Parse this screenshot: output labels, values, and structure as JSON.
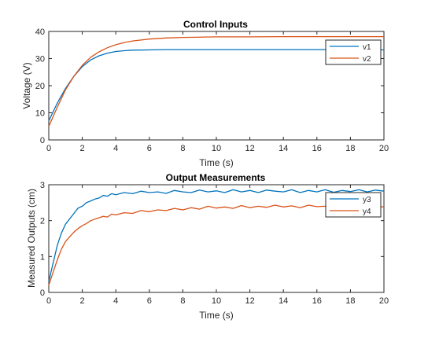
{
  "colors": {
    "blue": "#0072BD",
    "orange": "#D95319"
  },
  "chart_data": [
    {
      "type": "line",
      "title": "Control Inputs",
      "xlabel": "Time (s)",
      "ylabel": "Voltage (V)",
      "xlim": [
        0,
        20
      ],
      "ylim": [
        0,
        40
      ],
      "xticks": [
        "0",
        "2",
        "4",
        "6",
        "8",
        "10",
        "12",
        "14",
        "16",
        "18",
        "20"
      ],
      "yticks": [
        "0",
        "10",
        "20",
        "30",
        "40"
      ],
      "grid": false,
      "legend_position": "top-right",
      "series": [
        {
          "name": "v1",
          "color": "#0072BD",
          "x": [
            0,
            0.5,
            1,
            1.5,
            2,
            2.5,
            3,
            3.5,
            4,
            4.5,
            5,
            6,
            7,
            8,
            10,
            12,
            14,
            16,
            18,
            20
          ],
          "y": [
            7,
            13.5,
            19,
            23.5,
            27,
            29.5,
            31,
            32,
            32.6,
            32.9,
            33.1,
            33.2,
            33.3,
            33.3,
            33.3,
            33.3,
            33.3,
            33.3,
            33.3,
            33.2
          ]
        },
        {
          "name": "v2",
          "color": "#D95319",
          "x": [
            0,
            0.5,
            1,
            1.5,
            2,
            2.5,
            3,
            3.5,
            4,
            4.5,
            5,
            6,
            7,
            8,
            10,
            12,
            14,
            16,
            18,
            20
          ],
          "y": [
            5,
            12,
            18.5,
            23.5,
            27.5,
            30.5,
            32.5,
            34,
            35.1,
            35.9,
            36.5,
            37.2,
            37.6,
            37.8,
            38,
            38,
            38.1,
            38.1,
            38.1,
            38.1
          ]
        }
      ]
    },
    {
      "type": "line",
      "title": "Output Measurements",
      "xlabel": "Time (s)",
      "ylabel": "Measured Outputs (cm)",
      "xlim": [
        0,
        20
      ],
      "ylim": [
        0,
        3
      ],
      "xticks": [
        "0",
        "2",
        "4",
        "6",
        "8",
        "10",
        "12",
        "14",
        "16",
        "18",
        "20"
      ],
      "yticks": [
        "0",
        "1",
        "2",
        "3"
      ],
      "grid": false,
      "legend_position": "top-right",
      "series": [
        {
          "name": "y3",
          "color": "#0072BD",
          "x": [
            0,
            0.25,
            0.5,
            0.75,
            1,
            1.25,
            1.5,
            1.75,
            2,
            2.25,
            2.5,
            2.75,
            3,
            3.25,
            3.5,
            3.75,
            4,
            4.5,
            5,
            5.5,
            6,
            6.5,
            7,
            7.5,
            8,
            8.5,
            9,
            9.5,
            10,
            10.5,
            11,
            11.5,
            12,
            12.5,
            13,
            13.5,
            14,
            14.5,
            15,
            15.5,
            16,
            16.5,
            17,
            17.5,
            18,
            18.5,
            19,
            19.5,
            20
          ],
          "y": [
            0.3,
            0.8,
            1.3,
            1.65,
            1.9,
            2.05,
            2.2,
            2.35,
            2.4,
            2.5,
            2.55,
            2.6,
            2.63,
            2.7,
            2.68,
            2.75,
            2.72,
            2.78,
            2.75,
            2.82,
            2.78,
            2.8,
            2.76,
            2.84,
            2.8,
            2.78,
            2.85,
            2.8,
            2.83,
            2.78,
            2.86,
            2.8,
            2.84,
            2.78,
            2.85,
            2.82,
            2.8,
            2.86,
            2.78,
            2.84,
            2.8,
            2.86,
            2.79,
            2.84,
            2.81,
            2.86,
            2.8,
            2.85,
            2.82
          ]
        },
        {
          "name": "y4",
          "color": "#D95319",
          "x": [
            0,
            0.25,
            0.5,
            0.75,
            1,
            1.25,
            1.5,
            1.75,
            2,
            2.25,
            2.5,
            2.75,
            3,
            3.25,
            3.5,
            3.75,
            4,
            4.5,
            5,
            5.5,
            6,
            6.5,
            7,
            7.5,
            8,
            8.5,
            9,
            9.5,
            10,
            10.5,
            11,
            11.5,
            12,
            12.5,
            13,
            13.5,
            14,
            14.5,
            15,
            15.5,
            16,
            16.5,
            17,
            17.5,
            18,
            18.5,
            19,
            19.5,
            20
          ],
          "y": [
            0.2,
            0.55,
            0.9,
            1.2,
            1.42,
            1.55,
            1.68,
            1.78,
            1.86,
            1.92,
            2.0,
            2.04,
            2.08,
            2.12,
            2.1,
            2.18,
            2.16,
            2.22,
            2.2,
            2.28,
            2.25,
            2.3,
            2.28,
            2.34,
            2.3,
            2.36,
            2.32,
            2.4,
            2.35,
            2.38,
            2.34,
            2.42,
            2.36,
            2.4,
            2.37,
            2.43,
            2.38,
            2.41,
            2.36,
            2.43,
            2.39,
            2.4,
            2.37,
            2.42,
            2.38,
            2.41,
            2.39,
            2.4,
            2.38
          ]
        }
      ]
    }
  ]
}
